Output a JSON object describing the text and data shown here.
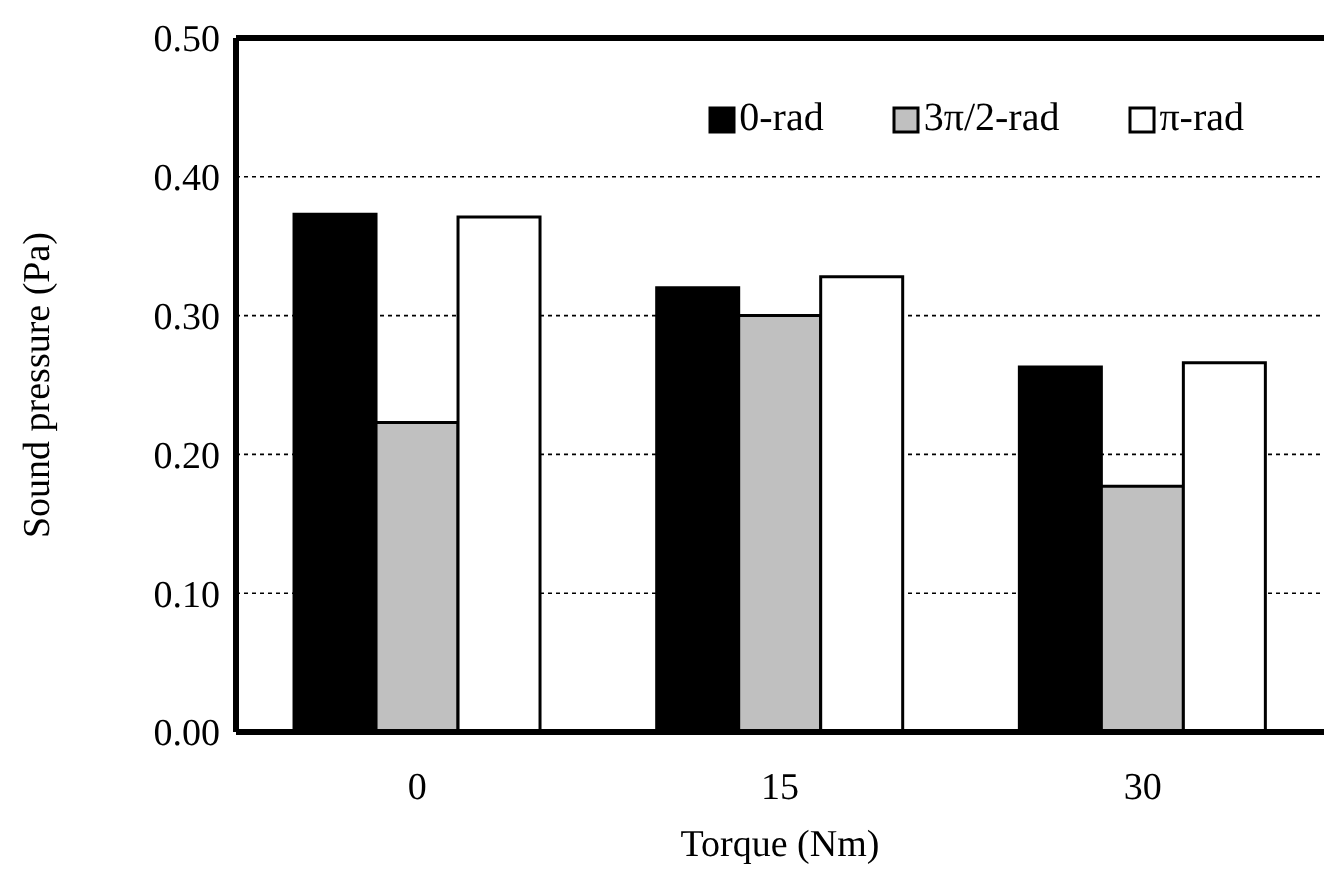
{
  "chart_data": {
    "type": "bar",
    "xlabel": "Torque (Nm)",
    "ylabel": "Sound pressure (Pa)",
    "categories": [
      "0",
      "15",
      "30"
    ],
    "series": [
      {
        "name": "0-rad",
        "color": "#000000",
        "values": [
          0.373,
          0.32,
          0.263
        ]
      },
      {
        "name": "3π/2-rad",
        "color": "#c0c0c0",
        "values": [
          0.223,
          0.3,
          0.177
        ]
      },
      {
        "name": "π-rad",
        "color": "#ffffff",
        "values": [
          0.371,
          0.328,
          0.266
        ]
      }
    ],
    "ylim": [
      0,
      0.5
    ],
    "yticks": [
      {
        "value": 0,
        "label": "0.00"
      },
      {
        "value": 0.1,
        "label": "0.10"
      },
      {
        "value": 0.2,
        "label": "0.20"
      },
      {
        "value": 0.3,
        "label": "0.30"
      },
      {
        "value": 0.4,
        "label": "0.40"
      },
      {
        "value": 0.5,
        "label": "0.50"
      }
    ],
    "grid": "y",
    "legend": "top right"
  }
}
